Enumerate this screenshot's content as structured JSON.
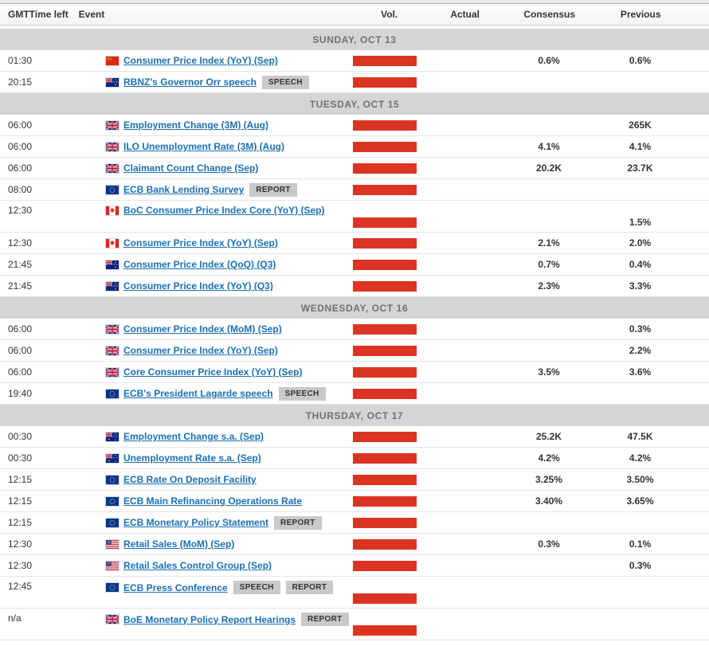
{
  "header": {
    "gmt": "GMT",
    "time_left": "Time left",
    "event": "Event",
    "vol": "Vol.",
    "actual": "Actual",
    "consensus": "Consensus",
    "previous": "Previous"
  },
  "colors": {
    "volatility_bar": "#db3423",
    "event_link": "#1a70b7",
    "badge_background": "#c9c9c9",
    "day_band_background": "#d5d5d5"
  },
  "days": [
    {
      "label": "SUNDAY, OCT 13",
      "events": [
        {
          "time": "01:30",
          "country": "china",
          "flag": "cn",
          "title": "Consumer Price Index (YoY) (Sep)",
          "badges": [],
          "actual": "",
          "consensus": "0.6%",
          "previous": "0.6%",
          "tall": false
        },
        {
          "time": "20:15",
          "country": "new-zealand",
          "flag": "nz",
          "title": "RBNZ's Governor Orr speech",
          "badges": [
            "SPEECH"
          ],
          "actual": "",
          "consensus": "",
          "previous": "",
          "tall": false
        }
      ]
    },
    {
      "label": "TUESDAY, OCT 15",
      "events": [
        {
          "time": "06:00",
          "country": "united-kingdom",
          "flag": "gb",
          "title": "Employment Change (3M) (Aug)",
          "badges": [],
          "actual": "",
          "consensus": "",
          "previous": "265K",
          "tall": false
        },
        {
          "time": "06:00",
          "country": "united-kingdom",
          "flag": "gb",
          "title": "ILO Unemployment Rate (3M) (Aug)",
          "badges": [],
          "actual": "",
          "consensus": "4.1%",
          "previous": "4.1%",
          "tall": false
        },
        {
          "time": "06:00",
          "country": "united-kingdom",
          "flag": "gb",
          "title": "Claimant Count Change (Sep)",
          "badges": [],
          "actual": "",
          "consensus": "20.2K",
          "previous": "23.7K",
          "tall": false
        },
        {
          "time": "08:00",
          "country": "european-union",
          "flag": "eu",
          "title": "ECB Bank Lending Survey",
          "badges": [
            "REPORT"
          ],
          "actual": "",
          "consensus": "",
          "previous": "",
          "tall": false
        },
        {
          "time": "12:30",
          "country": "canada",
          "flag": "ca",
          "title": "BoC Consumer Price Index Core (YoY) (Sep)",
          "badges": [],
          "actual": "",
          "consensus": "",
          "previous": "1.5%",
          "tall": true
        },
        {
          "time": "12:30",
          "country": "canada",
          "flag": "ca",
          "title": "Consumer Price Index (YoY) (Sep)",
          "badges": [],
          "actual": "",
          "consensus": "2.1%",
          "previous": "2.0%",
          "tall": false
        },
        {
          "time": "21:45",
          "country": "new-zealand",
          "flag": "nz",
          "title": "Consumer Price Index (QoQ) (Q3)",
          "badges": [],
          "actual": "",
          "consensus": "0.7%",
          "previous": "0.4%",
          "tall": false
        },
        {
          "time": "21:45",
          "country": "new-zealand",
          "flag": "nz",
          "title": "Consumer Price Index (YoY) (Q3)",
          "badges": [],
          "actual": "",
          "consensus": "2.3%",
          "previous": "3.3%",
          "tall": false
        }
      ]
    },
    {
      "label": "WEDNESDAY, OCT 16",
      "events": [
        {
          "time": "06:00",
          "country": "united-kingdom",
          "flag": "gb",
          "title": "Consumer Price Index (MoM) (Sep)",
          "badges": [],
          "actual": "",
          "consensus": "",
          "previous": "0.3%",
          "tall": false
        },
        {
          "time": "06:00",
          "country": "united-kingdom",
          "flag": "gb",
          "title": "Consumer Price Index (YoY) (Sep)",
          "badges": [],
          "actual": "",
          "consensus": "",
          "previous": "2.2%",
          "tall": false
        },
        {
          "time": "06:00",
          "country": "united-kingdom",
          "flag": "gb",
          "title": "Core Consumer Price Index (YoY) (Sep)",
          "badges": [],
          "actual": "",
          "consensus": "3.5%",
          "previous": "3.6%",
          "tall": false
        },
        {
          "time": "19:40",
          "country": "european-union",
          "flag": "eu",
          "title": "ECB's President Lagarde speech",
          "badges": [
            "SPEECH"
          ],
          "actual": "",
          "consensus": "",
          "previous": "",
          "tall": false
        }
      ]
    },
    {
      "label": "THURSDAY, OCT 17",
      "events": [
        {
          "time": "00:30",
          "country": "australia",
          "flag": "au",
          "title": "Employment Change s.a. (Sep)",
          "badges": [],
          "actual": "",
          "consensus": "25.2K",
          "previous": "47.5K",
          "tall": false
        },
        {
          "time": "00:30",
          "country": "australia",
          "flag": "au",
          "title": "Unemployment Rate s.a. (Sep)",
          "badges": [],
          "actual": "",
          "consensus": "4.2%",
          "previous": "4.2%",
          "tall": false
        },
        {
          "time": "12:15",
          "country": "european-union",
          "flag": "eu",
          "title": "ECB Rate On Deposit Facility",
          "badges": [],
          "actual": "",
          "consensus": "3.25%",
          "previous": "3.50%",
          "tall": false
        },
        {
          "time": "12:15",
          "country": "european-union",
          "flag": "eu",
          "title": "ECB Main Refinancing Operations Rate",
          "badges": [],
          "actual": "",
          "consensus": "3.40%",
          "previous": "3.65%",
          "tall": false
        },
        {
          "time": "12:15",
          "country": "european-union",
          "flag": "eu",
          "title": "ECB Monetary Policy Statement",
          "badges": [
            "REPORT"
          ],
          "actual": "",
          "consensus": "",
          "previous": "",
          "tall": false
        },
        {
          "time": "12:30",
          "country": "united-states",
          "flag": "us",
          "title": "Retail Sales (MoM) (Sep)",
          "badges": [],
          "actual": "",
          "consensus": "0.3%",
          "previous": "0.1%",
          "tall": false
        },
        {
          "time": "12:30",
          "country": "united-states",
          "flag": "us",
          "title": "Retail Sales Control Group (Sep)",
          "badges": [],
          "actual": "",
          "consensus": "",
          "previous": "0.3%",
          "tall": false
        },
        {
          "time": "12:45",
          "country": "european-union",
          "flag": "eu",
          "title": "ECB Press Conference",
          "badges": [
            "SPEECH",
            "REPORT"
          ],
          "actual": "",
          "consensus": "",
          "previous": "",
          "tall": true
        },
        {
          "time": "n/a",
          "country": "united-kingdom",
          "flag": "gb",
          "title": "BoE Monetary Policy Report Hearings",
          "badges": [
            "REPORT"
          ],
          "actual": "",
          "consensus": "",
          "previous": "",
          "tall": true
        }
      ]
    }
  ]
}
